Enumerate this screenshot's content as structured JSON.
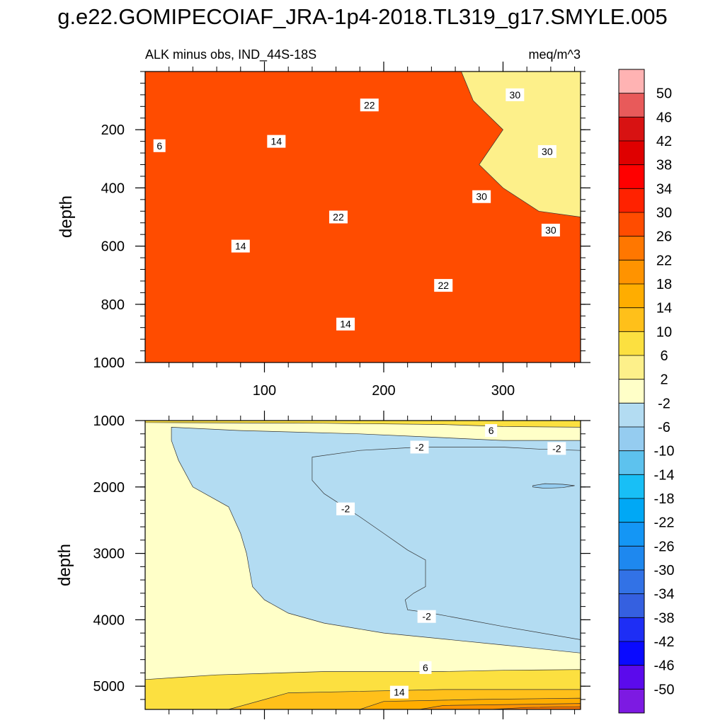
{
  "figure": {
    "title": "g.e22.GOMIPECOIAF_JRA-1p4-2018.TL319_g17.SMYLE.005"
  },
  "chart_data": [
    {
      "type": "heatmap",
      "panel": "upper",
      "title": "ALK minus obs, IND_44S-18S",
      "units": "meq/m^3",
      "xlabel": "",
      "ylabel": "depth",
      "xlim": [
        0,
        365
      ],
      "ylim": [
        1000,
        0
      ],
      "x_ticks": [
        100,
        200,
        300
      ],
      "y_ticks": [
        200,
        400,
        600,
        800,
        1000
      ],
      "bands": [
        {
          "level": 6,
          "points": [
            [
              0,
              0
            ],
            [
              10,
              0
            ],
            [
              8,
              100
            ],
            [
              6,
              300
            ],
            [
              4,
              500
            ],
            [
              3,
              700
            ],
            [
              10,
              800
            ],
            [
              20,
              900
            ],
            [
              30,
              960
            ],
            [
              40,
              1000
            ],
            [
              0,
              1000
            ]
          ]
        },
        {
          "level": 10,
          "points": [
            [
              30,
              0
            ],
            [
              40,
              100
            ],
            [
              25,
              300
            ],
            [
              25,
              500
            ],
            [
              28,
              700
            ],
            [
              60,
              800
            ],
            [
              100,
              860
            ],
            [
              150,
              900
            ],
            [
              200,
              940
            ],
            [
              250,
              960
            ],
            [
              300,
              975
            ],
            [
              365,
              990
            ],
            [
              365,
              1000
            ],
            [
              0,
              1000
            ],
            [
              0,
              0
            ]
          ]
        },
        {
          "level": 14,
          "points": [
            [
              70,
              0
            ],
            [
              80,
              100
            ],
            [
              70,
              200
            ],
            [
              73,
              350
            ],
            [
              75,
              500
            ],
            [
              80,
              650
            ],
            [
              120,
              750
            ],
            [
              150,
              800
            ],
            [
              200,
              840
            ],
            [
              260,
              860
            ],
            [
              300,
              870
            ],
            [
              365,
              880
            ],
            [
              365,
              1000
            ],
            [
              0,
              1000
            ],
            [
              0,
              0
            ]
          ]
        },
        {
          "level": 18,
          "points": [
            [
              165,
              0
            ],
            [
              145,
              120
            ],
            [
              155,
              200
            ],
            [
              160,
              400
            ],
            [
              175,
              500
            ],
            [
              210,
              600
            ],
            [
              240,
              650
            ],
            [
              290,
              700
            ],
            [
              330,
              730
            ],
            [
              365,
              740
            ],
            [
              365,
              1000
            ],
            [
              0,
              1000
            ],
            [
              0,
              0
            ]
          ]
        },
        {
          "level": 22,
          "points": [
            [
              200,
              0
            ],
            [
              215,
              150
            ],
            [
              205,
              300
            ],
            [
              225,
              380
            ],
            [
              245,
              450
            ],
            [
              270,
              520
            ],
            [
              300,
              560
            ],
            [
              330,
              600
            ],
            [
              365,
              600
            ],
            [
              365,
              1000
            ],
            [
              0,
              1000
            ],
            [
              0,
              0
            ]
          ]
        },
        {
          "level": 26,
          "points": [
            [
              265,
              0
            ],
            [
              275,
              100
            ],
            [
              300,
              200
            ],
            [
              280,
              320
            ],
            [
              300,
              400
            ],
            [
              330,
              480
            ],
            [
              365,
              500
            ],
            [
              365,
              1000
            ],
            [
              0,
              1000
            ],
            [
              0,
              0
            ]
          ]
        }
      ],
      "contour_labels": [
        {
          "text": "6",
          "x": 12,
          "y": 255
        },
        {
          "text": "14",
          "x": 110,
          "y": 240
        },
        {
          "text": "14",
          "x": 80,
          "y": 600
        },
        {
          "text": "14",
          "x": 168,
          "y": 868
        },
        {
          "text": "22",
          "x": 188,
          "y": 115
        },
        {
          "text": "22",
          "x": 162,
          "y": 500
        },
        {
          "text": "22",
          "x": 250,
          "y": 735
        },
        {
          "text": "30",
          "x": 310,
          "y": 80
        },
        {
          "text": "30",
          "x": 337,
          "y": 275
        },
        {
          "text": "30",
          "x": 282,
          "y": 430
        },
        {
          "text": "30",
          "x": 340,
          "y": 545
        }
      ]
    },
    {
      "type": "heatmap",
      "panel": "lower",
      "title": "",
      "units": "",
      "xlabel": "",
      "ylabel": "depth",
      "xlim": [
        0,
        365
      ],
      "ylim": [
        5350,
        1000
      ],
      "x_ticks": [
        100,
        200,
        300
      ],
      "y_ticks": [
        1000,
        2000,
        3000,
        4000,
        5000
      ],
      "bands": [
        {
          "level": -2,
          "points": [
            [
              22,
              1100
            ],
            [
              80,
              1150
            ],
            [
              180,
              1200
            ],
            [
              240,
              1250
            ],
            [
              300,
              1300
            ],
            [
              365,
              1300
            ],
            [
              365,
              4500
            ],
            [
              300,
              4380
            ],
            [
              200,
              4200
            ],
            [
              150,
              4050
            ],
            [
              120,
              3900
            ],
            [
              100,
              3700
            ],
            [
              90,
              3500
            ],
            [
              85,
              3000
            ],
            [
              80,
              2700
            ],
            [
              70,
              2300
            ],
            [
              40,
              2000
            ],
            [
              28,
              1600
            ],
            [
              22,
              1300
            ]
          ]
        },
        {
          "level": -6,
          "points": [
            [
              140,
              1550
            ],
            [
              180,
              1450
            ],
            [
              230,
              1400
            ],
            [
              300,
              1400
            ],
            [
              330,
              1430
            ],
            [
              365,
              1450
            ],
            [
              365,
              4300
            ],
            [
              300,
              4100
            ],
            [
              270,
              4000
            ],
            [
              240,
              3900
            ],
            [
              220,
              3850
            ],
            [
              218,
              3700
            ],
            [
              225,
              3600
            ],
            [
              235,
              3500
            ],
            [
              235,
              3100
            ],
            [
              220,
              2950
            ],
            [
              200,
              2700
            ],
            [
              180,
              2450
            ],
            [
              150,
              2100
            ],
            [
              140,
              1900
            ]
          ]
        },
        {
          "level": -10,
          "points": [
            [
              325,
              1980
            ],
            [
              335,
              1950
            ],
            [
              350,
              1960
            ],
            [
              360,
              1980
            ],
            [
              350,
              2010
            ],
            [
              335,
              2020
            ],
            [
              325,
              2000
            ]
          ]
        },
        {
          "level": 6,
          "points": [
            [
              0,
              1000
            ],
            [
              365,
              1000
            ],
            [
              365,
              1100
            ],
            [
              300,
              1090
            ],
            [
              250,
              1060
            ],
            [
              150,
              1040
            ],
            [
              0,
              1030
            ]
          ]
        },
        {
          "level": 6,
          "points": [
            [
              0,
              5300
            ],
            [
              0,
              4900
            ],
            [
              60,
              4830
            ],
            [
              150,
              4780
            ],
            [
              250,
              4780
            ],
            [
              300,
              4760
            ],
            [
              365,
              4750
            ],
            [
              365,
              5350
            ],
            [
              0,
              5350
            ]
          ]
        },
        {
          "level": 10,
          "points": [
            [
              70,
              5350
            ],
            [
              120,
              5100
            ],
            [
              250,
              5050
            ],
            [
              365,
              5050
            ],
            [
              365,
              5350
            ]
          ]
        },
        {
          "level": 14,
          "points": [
            [
              180,
              5350
            ],
            [
              200,
              5230
            ],
            [
              280,
              5200
            ],
            [
              365,
              5180
            ],
            [
              365,
              5350
            ]
          ]
        },
        {
          "level": 18,
          "points": [
            [
              230,
              5350
            ],
            [
              250,
              5290
            ],
            [
              330,
              5270
            ],
            [
              365,
              5260
            ],
            [
              365,
              5350
            ]
          ]
        },
        {
          "level": 22,
          "points": [
            [
              290,
              5350
            ],
            [
              320,
              5320
            ],
            [
              365,
              5310
            ],
            [
              365,
              5350
            ]
          ]
        }
      ],
      "contour_labels": [
        {
          "text": "6",
          "x": 290,
          "y": 1150
        },
        {
          "text": "6",
          "x": 235,
          "y": 4720
        },
        {
          "text": "14",
          "x": 213,
          "y": 5090
        },
        {
          "text": "-2",
          "x": 230,
          "y": 1400
        },
        {
          "text": "-2",
          "x": 345,
          "y": 1420
        },
        {
          "text": "-2",
          "x": 168,
          "y": 2330
        },
        {
          "text": "-2",
          "x": 236,
          "y": 3950
        }
      ]
    }
  ],
  "colorbar": {
    "labels": [
      "50",
      "46",
      "42",
      "38",
      "34",
      "30",
      "26",
      "22",
      "18",
      "14",
      "10",
      "6",
      "2",
      "-2",
      "-6",
      "-10",
      "-14",
      "-18",
      "-22",
      "-26",
      "-30",
      "-34",
      "-38",
      "-42",
      "-46",
      "-50"
    ],
    "colors": [
      "#ffb3b3",
      "#e85a5a",
      "#d81212",
      "#df0000",
      "#ff0000",
      "#ff2200",
      "#ff4c00",
      "#ff7700",
      "#ff9300",
      "#ffad00",
      "#ffc01a",
      "#fce040",
      "#fdf08a",
      "#ffffc8",
      "#b3dcf2",
      "#95ccf0",
      "#5dc2ee",
      "#18bff6",
      "#00a8f5",
      "#1496f5",
      "#1e88ef",
      "#3272e6",
      "#3560e0",
      "#1e2ef5",
      "#0a0aff",
      "#5b0aec",
      "#7d1ae2"
    ]
  },
  "palette": {
    "low": "#fdf08a",
    "6": "#fce040",
    "10": "#ffc01a",
    "14": "#ffad00",
    "18": "#ff9300",
    "22": "#ff7700",
    "26": "#ff4c00",
    "-2": "#b3dcf2",
    "-6": "#b3dcf2",
    "-10": "#95ccf0",
    "lower_base": "#ffffc8"
  }
}
